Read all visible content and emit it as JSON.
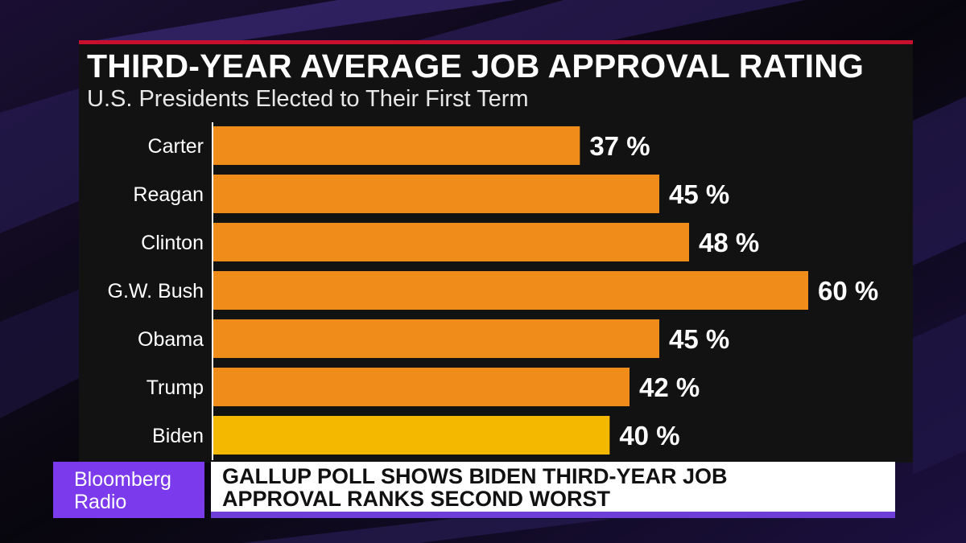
{
  "chart_data": {
    "type": "bar",
    "orientation": "horizontal",
    "title": "THIRD-YEAR AVERAGE JOB APPROVAL RATING",
    "subtitle": "U.S. Presidents Elected to Their First Term",
    "categories": [
      "Carter",
      "Reagan",
      "Clinton",
      "G.W. Bush",
      "Obama",
      "Trump",
      "Biden"
    ],
    "values": [
      37,
      45,
      48,
      60,
      45,
      42,
      40
    ],
    "value_labels": [
      "37 %",
      "45 %",
      "48 %",
      "60 %",
      "45 %",
      "42 %",
      "40 %"
    ],
    "xlim": [
      0,
      60
    ],
    "grid": false,
    "colors": {
      "bar": "#f08c1a",
      "highlight_bar": "#f5b800",
      "highlight_category": "Biden",
      "title_accent": "#c8102e"
    }
  },
  "branding": {
    "line1": "Bloomberg",
    "line2": "Radio",
    "color": "#7c3aed"
  },
  "headline": {
    "line1": "GALLUP POLL SHOWS BIDEN THIRD-YEAR JOB",
    "line2": "APPROVAL RANKS SECOND WORST",
    "accent": "#6d3fd8"
  }
}
